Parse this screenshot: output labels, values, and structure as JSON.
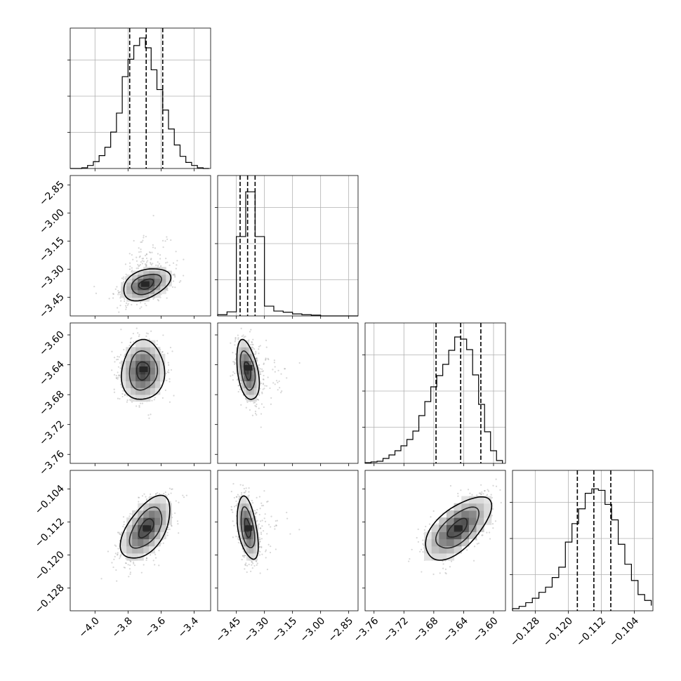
{
  "chart_data": {
    "type": "corner",
    "grid": true,
    "parameters": [
      {
        "range": [
          -4.15,
          -3.3
        ],
        "ticks": [
          -4.0,
          -3.8,
          -3.6,
          -3.4
        ],
        "tick_labels": [
          "−4.0",
          "−3.8",
          "−3.6",
          "−3.4"
        ],
        "quantiles": [
          -3.79,
          -3.69,
          -3.59
        ],
        "hist_bin_edges": [
          -4.15,
          -4.115,
          -4.08,
          -4.045,
          -4.01,
          -3.975,
          -3.94,
          -3.905,
          -3.87,
          -3.835,
          -3.8,
          -3.765,
          -3.73,
          -3.695,
          -3.66,
          -3.625,
          -3.59,
          -3.555,
          -3.52,
          -3.485,
          -3.45,
          -3.415,
          -3.38,
          -3.345,
          -3.31
        ],
        "hist_counts": [
          0,
          0,
          1,
          4,
          9,
          17,
          28,
          48,
          73,
          121,
          144,
          162,
          172,
          159,
          130,
          104,
          77,
          52,
          31,
          16,
          8,
          4,
          1,
          0
        ],
        "hist_ymax": 185
      },
      {
        "range": [
          -3.55,
          -2.8
        ],
        "ticks": [
          -3.45,
          -3.3,
          -3.15,
          -3.0,
          -2.85
        ],
        "tick_labels": [
          "−3.45",
          "−3.30",
          "−3.15",
          "−3.00",
          "−2.85"
        ],
        "quantiles": [
          -3.43,
          -3.39,
          -3.35
        ],
        "hist_bin_edges": [
          -3.55,
          -3.5,
          -3.45,
          -3.4,
          -3.35,
          -3.3,
          -3.25,
          -3.2,
          -3.15,
          -3.1,
          -3.05,
          -3.0,
          -2.95,
          -2.9,
          -2.85,
          -2.8
        ],
        "hist_counts": [
          3,
          10,
          195,
          305,
          195,
          24,
          12,
          9,
          5,
          3,
          2,
          0,
          0,
          0,
          0
        ],
        "hist_ymax": 345
      },
      {
        "range": [
          -3.772,
          -3.584
        ],
        "ticks": [
          -3.76,
          -3.72,
          -3.68,
          -3.64,
          -3.6
        ],
        "tick_labels": [
          "−3.76",
          "−3.72",
          "−3.68",
          "−3.64",
          "−3.60"
        ],
        "quantiles": [
          -3.677,
          -3.644,
          -3.617
        ],
        "hist_bin_edges": [
          -3.772,
          -3.764,
          -3.756,
          -3.748,
          -3.74,
          -3.732,
          -3.724,
          -3.716,
          -3.708,
          -3.7,
          -3.692,
          -3.684,
          -3.676,
          -3.668,
          -3.66,
          -3.652,
          -3.644,
          -3.636,
          -3.628,
          -3.62,
          -3.612,
          -3.604,
          -3.596,
          -3.588
        ],
        "hist_counts": [
          1,
          2,
          3,
          7,
          12,
          18,
          25,
          34,
          46,
          68,
          88,
          109,
          125,
          141,
          161,
          180,
          177,
          162,
          126,
          84,
          45,
          18,
          4
        ],
        "hist_ymax": 200
      },
      {
        "range": [
          -0.1335,
          -0.0995
        ],
        "ticks": [
          -0.128,
          -0.12,
          -0.112,
          -0.104
        ],
        "tick_labels": [
          "−0.128",
          "−0.120",
          "−0.112",
          "−0.104"
        ],
        "quantiles": [
          -0.1178,
          -0.1138,
          -0.1097
        ],
        "hist_bin_edges": [
          -0.1335,
          -0.1319,
          -0.1303,
          -0.1287,
          -0.1271,
          -0.1255,
          -0.1239,
          -0.1223,
          -0.1207,
          -0.1191,
          -0.1175,
          -0.1159,
          -0.1143,
          -0.1127,
          -0.1111,
          -0.1095,
          -0.1079,
          -0.1063,
          -0.1047,
          -0.1031,
          -0.1015,
          -0.0999
        ],
        "hist_counts": [
          3,
          6,
          11,
          17,
          25,
          32,
          45,
          59,
          93,
          118,
          138,
          159,
          165,
          163,
          144,
          123,
          90,
          63,
          41,
          22,
          14,
          7
        ],
        "hist_ymax": 190
      }
    ],
    "pairs": [
      {
        "row": 1,
        "col": 0,
        "sample_mean": [
          -3.69,
          -3.38
        ],
        "sample_sd": [
          0.075,
          0.045
        ],
        "sample_corr": 0.38,
        "level_scales": [
          0.6,
          1.2,
          1.9
        ],
        "core_peak": [
          -3.7,
          -3.38
        ]
      },
      {
        "row": 2,
        "col": 0,
        "sample_mean": [
          -3.71,
          -3.648
        ],
        "sample_sd": [
          0.065,
          0.02
        ],
        "sample_corr": 0.05,
        "level_scales": [
          0.6,
          1.3,
          2.0
        ],
        "core_peak": [
          -3.71,
          -3.646
        ]
      },
      {
        "row": 2,
        "col": 1,
        "sample_mean": [
          -3.39,
          -3.648
        ],
        "sample_sd": [
          0.03,
          0.02
        ],
        "sample_corr": -0.4,
        "level_scales": [
          0.6,
          1.3,
          2.0
        ],
        "core_peak": [
          -3.39,
          -3.644
        ]
      },
      {
        "row": 3,
        "col": 0,
        "sample_mean": [
          -3.69,
          -0.1135
        ],
        "sample_sd": [
          0.075,
          0.0038
        ],
        "sample_corr": 0.55,
        "level_scales": [
          0.6,
          1.3,
          2.0
        ],
        "core_peak": [
          -3.69,
          -0.1135
        ]
      },
      {
        "row": 3,
        "col": 1,
        "sample_mean": [
          -3.39,
          -0.1135
        ],
        "sample_sd": [
          0.028,
          0.0038
        ],
        "sample_corr": -0.45,
        "level_scales": [
          0.6,
          1.3,
          2.0
        ],
        "core_peak": [
          -3.39,
          -0.1135
        ]
      },
      {
        "row": 3,
        "col": 2,
        "sample_mean": [
          -3.648,
          -0.1135
        ],
        "sample_sd": [
          0.022,
          0.0038
        ],
        "sample_corr": 0.62,
        "level_scales": [
          0.6,
          1.3,
          2.0
        ],
        "core_peak": [
          -3.648,
          -0.1135
        ]
      }
    ]
  }
}
